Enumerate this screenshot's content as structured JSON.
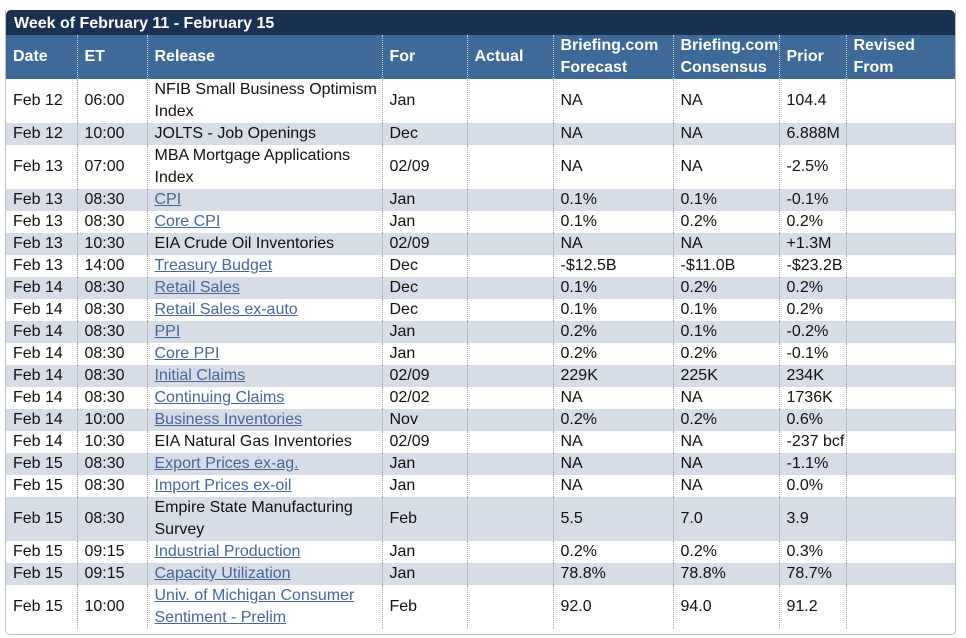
{
  "week_title": "Week of February 11 - February 15",
  "columns": [
    "Date",
    "ET",
    "Release",
    "For",
    "Actual",
    "Briefing.com Forecast",
    "Briefing.com Consensus",
    "Prior",
    "Revised From"
  ],
  "colors": {
    "title_bar": "#1b3152",
    "header": "#3f6a98",
    "stripe": "#d6dde6",
    "link": "#46669b"
  },
  "rows": [
    {
      "date": "Feb 12",
      "et": "06:00",
      "release": "NFIB Small Business Optimism Index",
      "link": false,
      "for": "Jan",
      "actual": "",
      "forecast": "NA",
      "consensus": "NA",
      "prior": "104.4",
      "revised": ""
    },
    {
      "date": "Feb 12",
      "et": "10:00",
      "release": "JOLTS - Job Openings",
      "link": false,
      "for": "Dec",
      "actual": "",
      "forecast": "NA",
      "consensus": "NA",
      "prior": "6.888M",
      "revised": ""
    },
    {
      "date": "Feb 13",
      "et": "07:00",
      "release": "MBA Mortgage Applications Index",
      "link": false,
      "for": "02/09",
      "actual": "",
      "forecast": "NA",
      "consensus": "NA",
      "prior": "-2.5%",
      "revised": ""
    },
    {
      "date": "Feb 13",
      "et": "08:30",
      "release": "CPI",
      "link": true,
      "for": "Jan",
      "actual": "",
      "forecast": "0.1%",
      "consensus": "0.1%",
      "prior": "-0.1%",
      "revised": ""
    },
    {
      "date": "Feb 13",
      "et": "08:30",
      "release": "Core CPI",
      "link": true,
      "for": "Jan",
      "actual": "",
      "forecast": "0.1%",
      "consensus": "0.2%",
      "prior": "0.2%",
      "revised": ""
    },
    {
      "date": "Feb 13",
      "et": "10:30",
      "release": "EIA Crude Oil Inventories",
      "link": false,
      "for": "02/09",
      "actual": "",
      "forecast": "NA",
      "consensus": "NA",
      "prior": "+1.3M",
      "revised": ""
    },
    {
      "date": "Feb 13",
      "et": "14:00",
      "release": "Treasury Budget",
      "link": true,
      "for": "Dec",
      "actual": "",
      "forecast": "-$12.5B",
      "consensus": "-$11.0B",
      "prior": "-$23.2B",
      "revised": ""
    },
    {
      "date": "Feb 14",
      "et": "08:30",
      "release": "Retail Sales",
      "link": true,
      "for": "Dec",
      "actual": "",
      "forecast": "0.1%",
      "consensus": "0.2%",
      "prior": "0.2%",
      "revised": ""
    },
    {
      "date": "Feb 14",
      "et": "08:30",
      "release": "Retail Sales ex-auto",
      "link": true,
      "for": "Dec",
      "actual": "",
      "forecast": "0.1%",
      "consensus": "0.1%",
      "prior": "0.2%",
      "revised": ""
    },
    {
      "date": "Feb 14",
      "et": "08:30",
      "release": "PPI",
      "link": true,
      "for": "Jan",
      "actual": "",
      "forecast": "0.2%",
      "consensus": "0.1%",
      "prior": "-0.2%",
      "revised": ""
    },
    {
      "date": "Feb 14",
      "et": "08:30",
      "release": "Core PPI",
      "link": true,
      "for": "Jan",
      "actual": "",
      "forecast": "0.2%",
      "consensus": "0.2%",
      "prior": "-0.1%",
      "revised": ""
    },
    {
      "date": "Feb 14",
      "et": "08:30",
      "release": "Initial Claims",
      "link": true,
      "for": "02/09",
      "actual": "",
      "forecast": "229K",
      "consensus": "225K",
      "prior": "234K",
      "revised": ""
    },
    {
      "date": "Feb 14",
      "et": "08:30",
      "release": "Continuing Claims",
      "link": true,
      "for": "02/02",
      "actual": "",
      "forecast": "NA",
      "consensus": "NA",
      "prior": "1736K",
      "revised": ""
    },
    {
      "date": "Feb 14",
      "et": "10:00",
      "release": "Business Inventories",
      "link": true,
      "for": "Nov",
      "actual": "",
      "forecast": "0.2%",
      "consensus": "0.2%",
      "prior": "0.6%",
      "revised": ""
    },
    {
      "date": "Feb 14",
      "et": "10:30",
      "release": "EIA Natural Gas Inventories",
      "link": false,
      "for": "02/09",
      "actual": "",
      "forecast": "NA",
      "consensus": "NA",
      "prior": "-237 bcf",
      "revised": ""
    },
    {
      "date": "Feb 15",
      "et": "08:30",
      "release": "Export Prices ex-ag.",
      "link": true,
      "for": "Jan",
      "actual": "",
      "forecast": "NA",
      "consensus": "NA",
      "prior": "-1.1%",
      "revised": ""
    },
    {
      "date": "Feb 15",
      "et": "08:30",
      "release": "Import Prices ex-oil",
      "link": true,
      "for": "Jan",
      "actual": "",
      "forecast": "NA",
      "consensus": "NA",
      "prior": "0.0%",
      "revised": ""
    },
    {
      "date": "Feb 15",
      "et": "08:30",
      "release": "Empire State Manufacturing Survey",
      "link": false,
      "for": "Feb",
      "actual": "",
      "forecast": "5.5",
      "consensus": "7.0",
      "prior": "3.9",
      "revised": ""
    },
    {
      "date": "Feb 15",
      "et": "09:15",
      "release": "Industrial Production",
      "link": true,
      "for": "Jan",
      "actual": "",
      "forecast": "0.2%",
      "consensus": "0.2%",
      "prior": "0.3%",
      "revised": ""
    },
    {
      "date": "Feb 15",
      "et": "09:15",
      "release": "Capacity Utilization",
      "link": true,
      "for": "Jan",
      "actual": "",
      "forecast": "78.8%",
      "consensus": "78.8%",
      "prior": "78.7%",
      "revised": ""
    },
    {
      "date": "Feb 15",
      "et": "10:00",
      "release": "Univ. of Michigan Consumer Sentiment - Prelim",
      "link": true,
      "for": "Feb",
      "actual": "",
      "forecast": "92.0",
      "consensus": "94.0",
      "prior": "91.2",
      "revised": ""
    }
  ]
}
